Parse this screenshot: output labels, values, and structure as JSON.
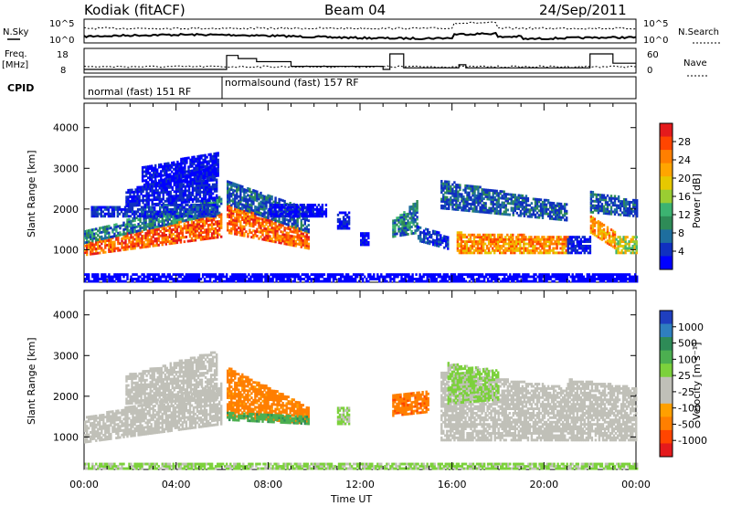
{
  "header": {
    "title": "Kodiak (fitACF)",
    "beam": "Beam 04",
    "date": "24/Sep/2011"
  },
  "status_panels": {
    "n_sky_label": "N.Sky",
    "n_search_label": "N.Search",
    "freq_label": "Freq.",
    "freq_unit": "[MHz]",
    "nave_label": "Nave",
    "cpid_label": "CPID",
    "n_ticks_left": [
      "10^5",
      "10^0"
    ],
    "n_ticks_right": [
      "10^5",
      "10^0"
    ],
    "freq_ticks": [
      "18",
      "8"
    ],
    "nave_ticks": [
      "60",
      "0"
    ],
    "cpid_segments": [
      {
        "label": "normal (fast) 151 RF",
        "start_h": 0,
        "end_h": 6
      },
      {
        "label": "normalsound (fast) 157 RF",
        "start_h": 6,
        "end_h": 24
      }
    ]
  },
  "chart_data": [
    {
      "type": "heatmap",
      "name": "power",
      "ylabel": "Slant Range [km]",
      "yticks": [
        1000,
        2000,
        3000,
        4000
      ],
      "ylim": [
        200,
        4600
      ],
      "xlim": [
        0,
        24
      ],
      "colorbar": {
        "label": "Power [dB]",
        "ticks": [
          "28",
          "24",
          "20",
          "16",
          "12",
          "8",
          "4"
        ],
        "colors": [
          "#e41a1c",
          "#ff4500",
          "#ff7f00",
          "#ffa500",
          "#e6c800",
          "#9acd32",
          "#3cb371",
          "#2e8b57",
          "#1e6e9e",
          "#1030c0",
          "#0000ff"
        ]
      },
      "bands": [
        {
          "t0": 0.0,
          "t1": 6.0,
          "r0": 850,
          "r1": 1150,
          "r0e": 1300,
          "r1e": 1900,
          "v": 26
        },
        {
          "t0": 0.0,
          "t1": 6.0,
          "r0": 1150,
          "r1": 1450,
          "r0e": 1900,
          "r1e": 2300,
          "v": 14
        },
        {
          "t0": 0.3,
          "t1": 5.8,
          "r0": 1800,
          "r1": 2050,
          "r0e": 1800,
          "r1e": 2100,
          "v": 10
        },
        {
          "t0": 1.8,
          "t1": 5.8,
          "r0": 2050,
          "r1": 2450,
          "r0e": 2200,
          "r1e": 3100,
          "v": 8
        },
        {
          "t0": 2.5,
          "t1": 5.8,
          "r0": 2500,
          "r1": 3000,
          "r0e": 2800,
          "r1e": 3400,
          "v": 6
        },
        {
          "t0": 6.2,
          "t1": 9.8,
          "r0": 1400,
          "r1": 2100,
          "r0e": 1000,
          "r1e": 1400,
          "v": 26
        },
        {
          "t0": 6.2,
          "t1": 9.8,
          "r0": 2100,
          "r1": 2700,
          "r0e": 1400,
          "r1e": 2000,
          "v": 12
        },
        {
          "t0": 8.0,
          "t1": 10.5,
          "r0": 1800,
          "r1": 2100,
          "r0e": 1800,
          "r1e": 2100,
          "v": 6
        },
        {
          "t0": 11.0,
          "t1": 11.5,
          "r0": 1500,
          "r1": 1900,
          "r0e": 1500,
          "r1e": 1900,
          "v": 8
        },
        {
          "t0": 12.0,
          "t1": 12.4,
          "r0": 1100,
          "r1": 1400,
          "r0e": 1100,
          "r1e": 1400,
          "v": 6
        },
        {
          "t0": 13.4,
          "t1": 14.5,
          "r0": 1300,
          "r1": 1700,
          "r0e": 1400,
          "r1e": 2200,
          "v": 14
        },
        {
          "t0": 14.5,
          "t1": 15.8,
          "r0": 1200,
          "r1": 1600,
          "r0e": 1000,
          "r1e": 1300,
          "v": 10
        },
        {
          "t0": 15.5,
          "t1": 21.0,
          "r0": 2000,
          "r1": 2700,
          "r0e": 1700,
          "r1e": 2100,
          "v": 12
        },
        {
          "t0": 16.2,
          "t1": 21.0,
          "r0": 900,
          "r1": 1400,
          "r0e": 900,
          "r1e": 1300,
          "v": 24
        },
        {
          "t0": 21.0,
          "t1": 22.0,
          "r0": 900,
          "r1": 1300,
          "r0e": 900,
          "r1e": 1300,
          "v": 8
        },
        {
          "t0": 22.0,
          "t1": 23.1,
          "r0": 1400,
          "r1": 1800,
          "r0e": 1000,
          "r1e": 1400,
          "v": 24
        },
        {
          "t0": 22.0,
          "t1": 24.0,
          "r0": 1900,
          "r1": 2400,
          "r0e": 1800,
          "r1e": 2200,
          "v": 12
        },
        {
          "t0": 23.1,
          "t1": 24.0,
          "r0": 900,
          "r1": 1300,
          "r0e": 900,
          "r1e": 1300,
          "v": 20
        },
        {
          "t0": 0.0,
          "t1": 24.0,
          "r0": 200,
          "r1": 400,
          "r0e": 200,
          "r1e": 400,
          "v": 4
        }
      ]
    },
    {
      "type": "heatmap",
      "name": "velocity",
      "ylabel": "Slant Range [km]",
      "yticks": [
        1000,
        2000,
        3000,
        4000
      ],
      "ylim": [
        200,
        4600
      ],
      "xlim": [
        0,
        24
      ],
      "xlabel": "Time UT",
      "xticks": [
        "00:00",
        "04:00",
        "08:00",
        "12:00",
        "16:00",
        "20:00",
        "00:00"
      ],
      "colorbar": {
        "label": "Velocity [m s⁻¹]",
        "ticks": [
          "1000",
          "500",
          "100",
          "25",
          "-25",
          "-100",
          "-500",
          "-1000"
        ],
        "colors": [
          "#1f3fbf",
          "#2f7fbf",
          "#2e8b57",
          "#4caf50",
          "#7cd13c",
          "#c0c0b8",
          "#c0c0b8",
          "#ffa000",
          "#ff7f00",
          "#ff4500",
          "#e41a1c"
        ]
      },
      "bands": [
        {
          "t0": 0.0,
          "t1": 6.0,
          "r0": 850,
          "r1": 1450,
          "r0e": 1300,
          "r1e": 2300,
          "v": 0
        },
        {
          "t0": 1.8,
          "t1": 5.8,
          "r0": 1800,
          "r1": 2500,
          "r0e": 1900,
          "r1e": 3100,
          "v": 5
        },
        {
          "t0": 6.2,
          "t1": 9.8,
          "r0": 1500,
          "r1": 2700,
          "r0e": 1300,
          "r1e": 1700,
          "v": -150
        },
        {
          "t0": 6.2,
          "t1": 9.8,
          "r0": 1400,
          "r1": 1600,
          "r0e": 1300,
          "r1e": 1500,
          "v": 200
        },
        {
          "t0": 11.0,
          "t1": 11.5,
          "r0": 1300,
          "r1": 1700,
          "r0e": 1300,
          "r1e": 1700,
          "v": 60
        },
        {
          "t0": 13.4,
          "t1": 15.0,
          "r0": 1500,
          "r1": 2000,
          "r0e": 1600,
          "r1e": 2100,
          "v": -200
        },
        {
          "t0": 15.5,
          "t1": 21.0,
          "r0": 900,
          "r1": 2600,
          "r0e": 900,
          "r1e": 2200,
          "v": 0
        },
        {
          "t0": 15.8,
          "t1": 18.0,
          "r0": 1800,
          "r1": 2800,
          "r0e": 1900,
          "r1e": 2600,
          "v": 60
        },
        {
          "t0": 21.0,
          "t1": 24.0,
          "r0": 900,
          "r1": 2400,
          "r0e": 900,
          "r1e": 2200,
          "v": 0
        },
        {
          "t0": 0.0,
          "t1": 24.0,
          "r0": 200,
          "r1": 350,
          "r0e": 200,
          "r1e": 350,
          "v": 60
        }
      ]
    }
  ]
}
